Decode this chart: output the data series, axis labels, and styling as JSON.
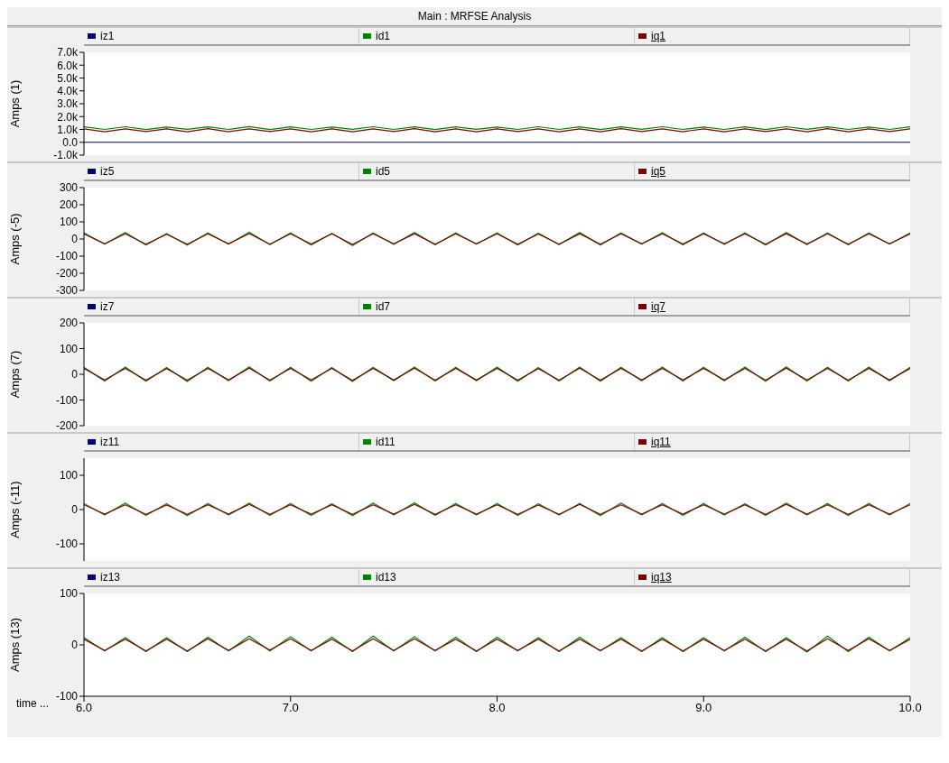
{
  "chart_data": [
    {
      "type": "line",
      "title": "Main : MRFSE Analysis",
      "ylabel": "Amps (1)",
      "legend": "top",
      "tick_labels": "y",
      "xlim": [
        6,
        10
      ],
      "ylim": [
        -1000,
        7000
      ],
      "yticks": [
        {
          "value": -1000,
          "label": "-1.0k"
        },
        {
          "value": 0,
          "label": "0.0"
        },
        {
          "value": 1000,
          "label": "1.0k"
        },
        {
          "value": 2000,
          "label": "2.0k"
        },
        {
          "value": 3000,
          "label": "3.0k"
        },
        {
          "value": 4000,
          "label": "4.0k"
        },
        {
          "value": 5000,
          "label": "5.0k"
        },
        {
          "value": 6000,
          "label": "6.0k"
        },
        {
          "value": 7000,
          "label": "7.0k"
        }
      ],
      "x": [
        6.0,
        6.1,
        6.2,
        6.3,
        6.4,
        6.5,
        6.6,
        6.7,
        6.8,
        6.9,
        7.0,
        7.1,
        7.2,
        7.3,
        7.4,
        7.5,
        7.6,
        7.7,
        7.8,
        7.9,
        8.0,
        8.1,
        8.2,
        8.3,
        8.4,
        8.5,
        8.6,
        8.7,
        8.8,
        8.9,
        9.0,
        9.1,
        9.2,
        9.3,
        9.4,
        9.5,
        9.6,
        9.7,
        9.8,
        9.9,
        10.0
      ],
      "series": [
        {
          "name": "iz1",
          "color": "#000080",
          "values": [
            0,
            0,
            0,
            0,
            0,
            0,
            0,
            0,
            0,
            0,
            0,
            0,
            0,
            0,
            0,
            0,
            0,
            0,
            0,
            0,
            0,
            0,
            0,
            0,
            0,
            0,
            0,
            0,
            0,
            0,
            0,
            0,
            0,
            0,
            0,
            0,
            0,
            0,
            0,
            0,
            0
          ]
        },
        {
          "name": "id1",
          "color": "#008000",
          "values": [
            1200,
            1000,
            1210,
            990,
            1190,
            1010,
            1200,
            1000,
            1220,
            990,
            1200,
            1000,
            1190,
            1010,
            1210,
            1000,
            1200,
            990,
            1200,
            1010,
            1190,
            1000,
            1210,
            1000,
            1200,
            990,
            1200,
            1010,
            1210,
            1000,
            1190,
            1000,
            1200,
            990,
            1210,
            1010,
            1200,
            1000,
            1190,
            1000,
            1200
          ]
        },
        {
          "name": "iq1",
          "color": "#800000",
          "values": [
            1050,
            820,
            1040,
            830,
            1050,
            810,
            1060,
            820,
            1040,
            830,
            1050,
            820,
            1040,
            810,
            1050,
            830,
            1060,
            820,
            1040,
            820,
            1050,
            830,
            1040,
            810,
            1050,
            820,
            1060,
            830,
            1040,
            820,
            1050,
            810,
            1040,
            830,
            1050,
            820,
            1060,
            820,
            1040,
            830,
            1050
          ]
        }
      ]
    },
    {
      "type": "line",
      "ylabel": "Amps (-5)",
      "legend": "top",
      "tick_labels": "y",
      "xlim": [
        6,
        10
      ],
      "ylim": [
        -300,
        300
      ],
      "yticks": [
        -300,
        -200,
        -100,
        0,
        100,
        200,
        300
      ],
      "x": [
        6.0,
        6.1,
        6.2,
        6.3,
        6.4,
        6.5,
        6.6,
        6.7,
        6.8,
        6.9,
        7.0,
        7.1,
        7.2,
        7.3,
        7.4,
        7.5,
        7.6,
        7.7,
        7.8,
        7.9,
        8.0,
        8.1,
        8.2,
        8.3,
        8.4,
        8.5,
        8.6,
        8.7,
        8.8,
        8.9,
        9.0,
        9.1,
        9.2,
        9.3,
        9.4,
        9.5,
        9.6,
        9.7,
        9.8,
        9.9,
        10.0
      ],
      "series": [
        {
          "name": "iz5",
          "color": "#000080",
          "values": [
            null,
            null,
            null,
            null,
            null,
            null,
            null,
            null,
            null,
            null,
            null,
            null,
            null,
            null,
            null,
            null,
            null,
            null,
            null,
            null,
            null,
            null,
            null,
            null,
            null,
            null,
            null,
            null,
            null,
            null,
            null,
            null,
            null,
            null,
            null,
            null,
            null,
            null,
            null,
            null,
            null
          ]
        },
        {
          "name": "id5",
          "color": "#008000",
          "values": [
            35,
            -30,
            38,
            -35,
            32,
            -36,
            35,
            -30,
            40,
            -33,
            36,
            -35,
            33,
            -38,
            35,
            -32,
            38,
            -34,
            35,
            -30,
            36,
            -35,
            34,
            -33,
            38,
            -36,
            35,
            -30,
            37,
            -34,
            35,
            -32,
            36,
            -35,
            38,
            -33,
            35,
            -34,
            36,
            -30,
            35
          ]
        },
        {
          "name": "iq5",
          "color": "#800000",
          "values": [
            30,
            -28,
            30,
            -30,
            28,
            -30,
            30,
            -28,
            32,
            -30,
            30,
            -29,
            30,
            -32,
            30,
            -28,
            31,
            -30,
            30,
            -28,
            30,
            -30,
            29,
            -30,
            31,
            -30,
            30,
            -28,
            30,
            -29,
            30,
            -28,
            30,
            -30,
            31,
            -29,
            30,
            -30,
            30,
            -28,
            30
          ]
        }
      ]
    },
    {
      "type": "line",
      "ylabel": "Amps (7)",
      "legend": "top",
      "tick_labels": "y",
      "xlim": [
        6,
        10
      ],
      "ylim": [
        -200,
        200
      ],
      "yticks": [
        -200,
        -100,
        0,
        100,
        200
      ],
      "x": [
        6.0,
        6.1,
        6.2,
        6.3,
        6.4,
        6.5,
        6.6,
        6.7,
        6.8,
        6.9,
        7.0,
        7.1,
        7.2,
        7.3,
        7.4,
        7.5,
        7.6,
        7.7,
        7.8,
        7.9,
        8.0,
        8.1,
        8.2,
        8.3,
        8.4,
        8.5,
        8.6,
        8.7,
        8.8,
        8.9,
        9.0,
        9.1,
        9.2,
        9.3,
        9.4,
        9.5,
        9.6,
        9.7,
        9.8,
        9.9,
        10.0
      ],
      "series": [
        {
          "name": "iz7",
          "color": "#000080",
          "values": [
            null,
            null,
            null,
            null,
            null,
            null,
            null,
            null,
            null,
            null,
            null,
            null,
            null,
            null,
            null,
            null,
            null,
            null,
            null,
            null,
            null,
            null,
            null,
            null,
            null,
            null,
            null,
            null,
            null,
            null,
            null,
            null,
            null,
            null,
            null,
            null,
            null,
            null,
            null,
            null,
            null
          ]
        },
        {
          "name": "id7",
          "color": "#008000",
          "values": [
            27,
            -26,
            28,
            -27,
            26,
            -28,
            27,
            -25,
            29,
            -26,
            27,
            -27,
            26,
            -28,
            27,
            -25,
            28,
            -26,
            27,
            -25,
            28,
            -27,
            26,
            -26,
            28,
            -27,
            27,
            -25,
            28,
            -26,
            27,
            -25,
            28,
            -27,
            29,
            -26,
            27,
            -26,
            28,
            -25,
            27
          ]
        },
        {
          "name": "iq7",
          "color": "#800000",
          "values": [
            23,
            -22,
            23,
            -23,
            22,
            -23,
            23,
            -22,
            24,
            -23,
            23,
            -22,
            23,
            -24,
            23,
            -22,
            24,
            -23,
            23,
            -22,
            23,
            -23,
            22,
            -23,
            24,
            -23,
            23,
            -22,
            23,
            -22,
            23,
            -22,
            23,
            -23,
            24,
            -22,
            23,
            -23,
            23,
            -22,
            23
          ]
        }
      ]
    },
    {
      "type": "line",
      "ylabel": "Amps (-11)",
      "legend": "top",
      "tick_labels": "y",
      "xlim": [
        6,
        10
      ],
      "ylim": [
        -150,
        150
      ],
      "yticks": [
        -100,
        0,
        100
      ],
      "x": [
        6.0,
        6.1,
        6.2,
        6.3,
        6.4,
        6.5,
        6.6,
        6.7,
        6.8,
        6.9,
        7.0,
        7.1,
        7.2,
        7.3,
        7.4,
        7.5,
        7.6,
        7.7,
        7.8,
        7.9,
        8.0,
        8.1,
        8.2,
        8.3,
        8.4,
        8.5,
        8.6,
        8.7,
        8.8,
        8.9,
        9.0,
        9.1,
        9.2,
        9.3,
        9.4,
        9.5,
        9.6,
        9.7,
        9.8,
        9.9,
        10.0
      ],
      "series": [
        {
          "name": "iz11",
          "color": "#000080",
          "values": [
            null,
            null,
            null,
            null,
            null,
            null,
            null,
            null,
            null,
            null,
            null,
            null,
            null,
            null,
            null,
            null,
            null,
            null,
            null,
            null,
            null,
            null,
            null,
            null,
            null,
            null,
            null,
            null,
            null,
            null,
            null,
            null,
            null,
            null,
            null,
            null,
            null,
            null,
            null,
            null,
            null
          ]
        },
        {
          "name": "id11",
          "color": "#008000",
          "values": [
            18,
            -16,
            19,
            -17,
            17,
            -18,
            18,
            -16,
            19,
            -17,
            18,
            -17,
            17,
            -18,
            19,
            -16,
            20,
            -17,
            18,
            -16,
            18,
            -17,
            17,
            -16,
            18,
            -18,
            19,
            -16,
            18,
            -17,
            18,
            -16,
            17,
            -17,
            19,
            -16,
            18,
            -17,
            18,
            -16,
            18
          ]
        },
        {
          "name": "iq11",
          "color": "#800000",
          "values": [
            14,
            -13,
            14,
            -14,
            13,
            -14,
            14,
            -13,
            15,
            -14,
            14,
            -13,
            14,
            -14,
            14,
            -13,
            15,
            -14,
            14,
            -13,
            14,
            -14,
            13,
            -14,
            15,
            -14,
            14,
            -13,
            14,
            -13,
            14,
            -13,
            14,
            -14,
            15,
            -13,
            14,
            -14,
            14,
            -13,
            14
          ]
        }
      ]
    },
    {
      "type": "line",
      "ylabel": "Amps (13)",
      "xlabel": "time ...",
      "legend": "top",
      "xlim": [
        6,
        10
      ],
      "ylim": [
        -100,
        100
      ],
      "xticks": [
        {
          "value": 6,
          "label": "6.0"
        },
        {
          "value": 7,
          "label": "7.0"
        },
        {
          "value": 8,
          "label": "8.0"
        },
        {
          "value": 9,
          "label": "9.0"
        },
        {
          "value": 10,
          "label": "10.0"
        }
      ],
      "yticks": [
        -100,
        0,
        100
      ],
      "x": [
        6.0,
        6.1,
        6.2,
        6.3,
        6.4,
        6.5,
        6.6,
        6.7,
        6.8,
        6.9,
        7.0,
        7.1,
        7.2,
        7.3,
        7.4,
        7.5,
        7.6,
        7.7,
        7.8,
        7.9,
        8.0,
        8.1,
        8.2,
        8.3,
        8.4,
        8.5,
        8.6,
        8.7,
        8.8,
        8.9,
        9.0,
        9.1,
        9.2,
        9.3,
        9.4,
        9.5,
        9.6,
        9.7,
        9.8,
        9.9,
        10.0
      ],
      "series": [
        {
          "name": "iz13",
          "color": "#000080",
          "values": [
            null,
            null,
            null,
            null,
            null,
            null,
            null,
            null,
            null,
            null,
            null,
            null,
            null,
            null,
            null,
            null,
            null,
            null,
            null,
            null,
            null,
            null,
            null,
            null,
            null,
            null,
            null,
            null,
            null,
            null,
            null,
            null,
            null,
            null,
            null,
            null,
            null,
            null,
            null,
            null,
            null
          ]
        },
        {
          "name": "id13",
          "color": "#008000",
          "values": [
            14,
            -12,
            14,
            -13,
            14,
            -13,
            15,
            -12,
            17,
            -12,
            16,
            -12,
            15,
            -13,
            17,
            -12,
            16,
            -12,
            15,
            -13,
            15,
            -12,
            14,
            -13,
            15,
            -12,
            14,
            -13,
            14,
            -13,
            14,
            -12,
            15,
            -13,
            14,
            -14,
            17,
            -13,
            15,
            -12,
            14
          ]
        },
        {
          "name": "iq13",
          "color": "#800000",
          "values": [
            11,
            -11,
            11,
            -12,
            11,
            -12,
            12,
            -11,
            12,
            -10,
            12,
            -11,
            11,
            -12,
            12,
            -11,
            12,
            -11,
            11,
            -12,
            11,
            -11,
            11,
            -12,
            11,
            -11,
            11,
            -12,
            11,
            -12,
            11,
            -11,
            11,
            -12,
            11,
            -12,
            12,
            -11,
            12,
            -11,
            11
          ]
        }
      ]
    }
  ]
}
